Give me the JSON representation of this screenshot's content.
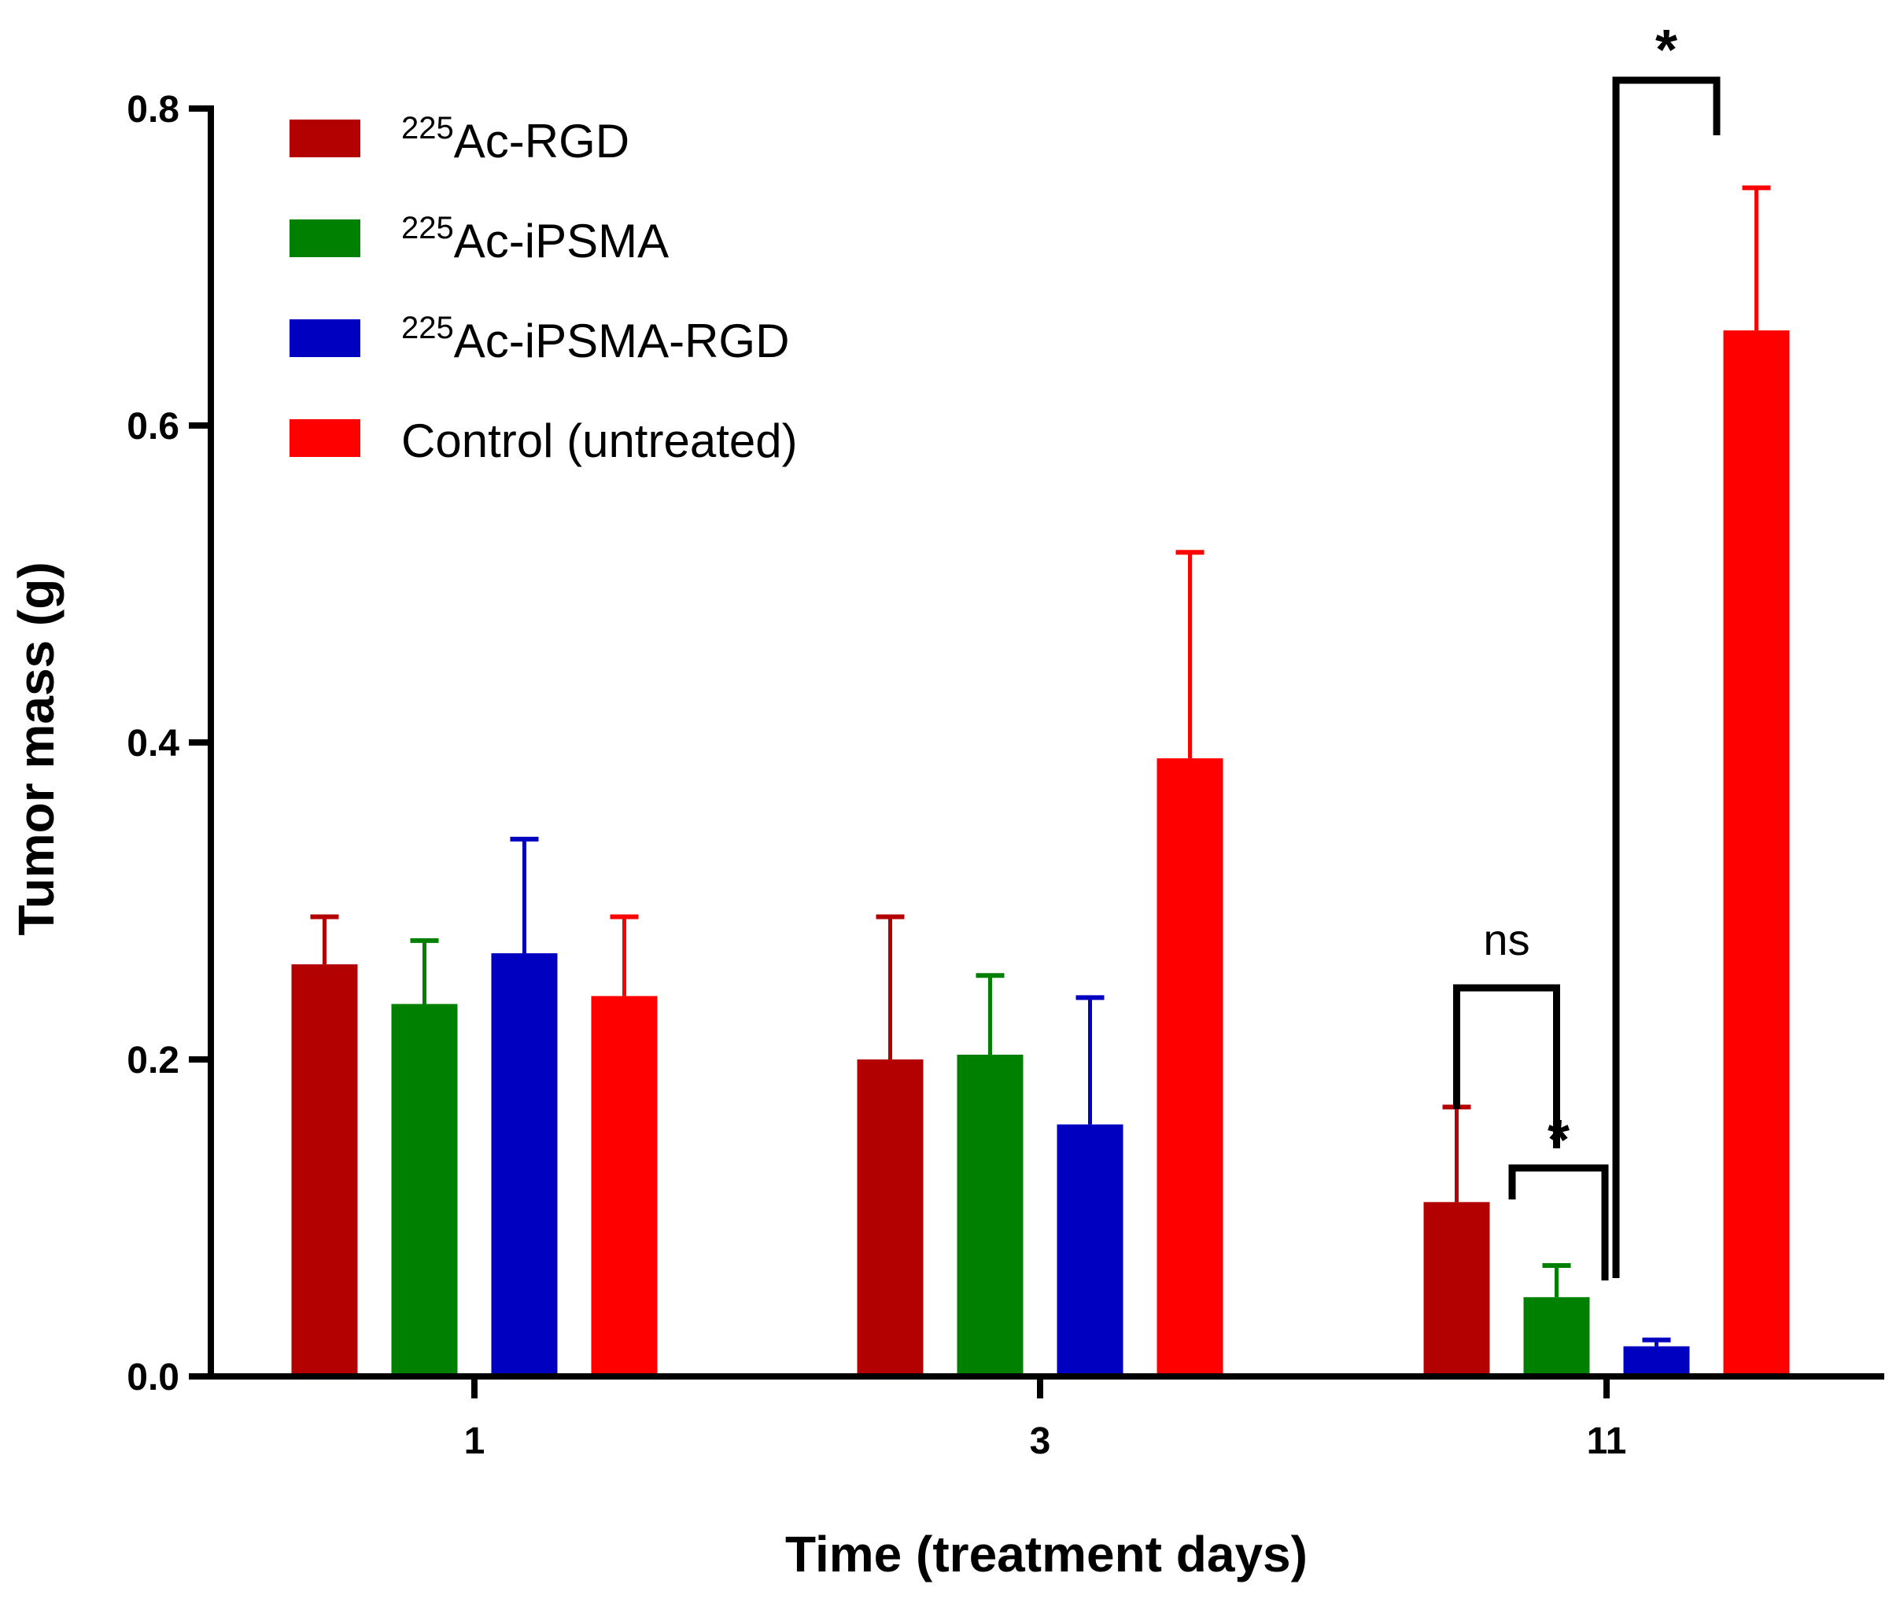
{
  "chart_data": {
    "type": "bar",
    "title": "",
    "xlabel": "Time (treatment days)",
    "ylabel": "Tumor mass (g)",
    "ylim": [
      0,
      0.8
    ],
    "yticks": [
      "0.0",
      "0.2",
      "0.4",
      "0.6",
      "0.8"
    ],
    "categories": [
      "1",
      "3",
      "11"
    ],
    "series": [
      {
        "name": "Ac-RGD",
        "isotope": "225",
        "color": "#b30000",
        "values": [
          0.26,
          0.2,
          0.11
        ],
        "errors": [
          0.03,
          0.09,
          0.06
        ]
      },
      {
        "name": "Ac-iPSMA",
        "isotope": "225",
        "color": "#008000",
        "values": [
          0.235,
          0.203,
          0.05
        ],
        "errors": [
          0.04,
          0.05,
          0.02
        ]
      },
      {
        "name": "Ac-iPSMA-RGD",
        "isotope": "225",
        "color": "#0000c0",
        "values": [
          0.267,
          0.159,
          0.019
        ],
        "errors": [
          0.072,
          0.08,
          0.004
        ]
      },
      {
        "name": "Control (untreated)",
        "isotope": "",
        "color": "#ff0000",
        "values": [
          0.24,
          0.39,
          0.66
        ],
        "errors": [
          0.05,
          0.13,
          0.09
        ]
      }
    ],
    "annotations": [
      {
        "label": "ns",
        "category": "11",
        "between": [
          "Ac-RGD",
          "Ac-iPSMA"
        ]
      },
      {
        "label": "*",
        "category": "11",
        "between": [
          "Ac-iPSMA",
          "Ac-iPSMA-RGD"
        ]
      },
      {
        "label": "*",
        "category": "11",
        "between": [
          "Ac-iPSMA-RGD",
          "Control (untreated)"
        ]
      }
    ],
    "legend_position": "top-left"
  }
}
